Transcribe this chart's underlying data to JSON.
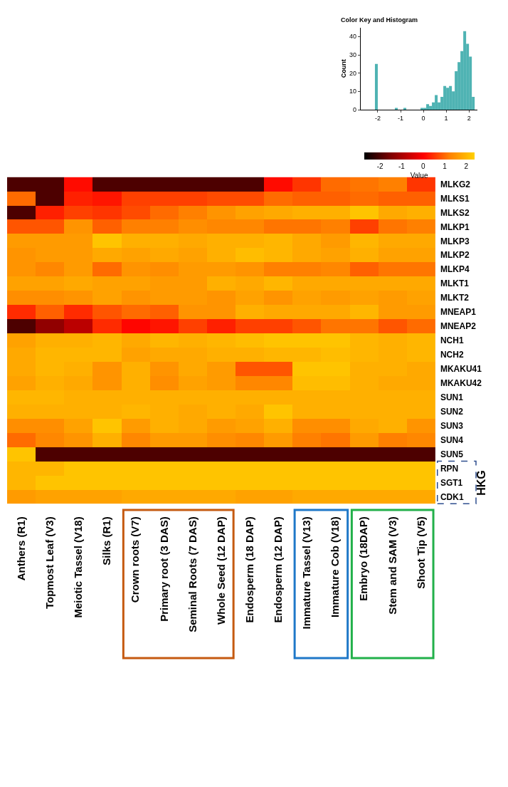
{
  "chart_data": [
    {
      "type": "heatmap",
      "categories": [
        "Anthers (R1)",
        "Topmost Leaf (V3)",
        "Meiotic Tassel (V18)",
        "Silks (R1)",
        "Crown roots (V7)",
        "Primary root (3 DAS)",
        "Seminal Roots (7 DAS)",
        "Whole Seed (12 DAP)",
        "Endosperm (18 DAP)",
        "Endosperm (12 DAP)",
        "Immature Tassel (V13)",
        "Immature Cob (V18)",
        "Embryo (18DAP)",
        "Stem and SAM (V3)",
        "Shoot Tip (V5)"
      ],
      "y_categories": [
        "MLKG2",
        "MLKS1",
        "MLKS2",
        "MLKP1",
        "MLKP3",
        "MLKP2",
        "MLKP4",
        "MLKT1",
        "MLKT2",
        "MNEAP1",
        "MNEAP2",
        "NCH1",
        "NCH2",
        "MKAKU41",
        "MKAKU42",
        "SUN1",
        "SUN2",
        "SUN3",
        "SUN4",
        "SUN5",
        "RPN",
        "SGT1",
        "CDK1"
      ],
      "cells": [
        [
          -2,
          -2,
          0.1,
          -2,
          -2,
          -2,
          -2,
          -2,
          -2,
          0.1,
          0.5,
          1.0,
          1.1,
          1.2,
          0.5
        ],
        [
          1.0,
          -2,
          0.3,
          0.2,
          0.6,
          0.6,
          0.6,
          0.7,
          0.7,
          1.0,
          0.9,
          0.9,
          1.0,
          0.9,
          0.9
        ],
        [
          -2,
          0.3,
          0.6,
          0.5,
          0.7,
          1.0,
          1.2,
          1.5,
          1.7,
          1.8,
          1.9,
          1.9,
          2.2,
          1.8,
          1.9
        ],
        [
          0.8,
          0.8,
          1.5,
          0.9,
          1.2,
          1.2,
          1.4,
          1.3,
          1.3,
          1.1,
          1.1,
          1.2,
          0.6,
          1.1,
          1.2
        ],
        [
          1.6,
          1.6,
          1.6,
          2.2,
          1.9,
          1.9,
          1.8,
          1.9,
          1.9,
          2.0,
          1.8,
          1.6,
          2.0,
          1.8,
          1.8
        ],
        [
          1.5,
          1.6,
          1.6,
          1.8,
          1.7,
          1.8,
          1.7,
          1.9,
          2.1,
          2.0,
          1.8,
          1.7,
          1.9,
          1.7,
          1.7
        ],
        [
          1.5,
          1.3,
          1.6,
          1.0,
          1.5,
          1.4,
          1.6,
          1.6,
          1.5,
          1.2,
          1.2,
          1.3,
          0.9,
          1.1,
          1.1
        ],
        [
          1.7,
          1.7,
          1.8,
          1.7,
          1.7,
          1.6,
          1.6,
          1.9,
          1.8,
          2.0,
          1.8,
          1.8,
          1.8,
          1.8,
          1.8
        ],
        [
          1.4,
          1.4,
          1.5,
          1.7,
          1.5,
          1.6,
          1.6,
          1.5,
          1.7,
          1.5,
          1.7,
          1.6,
          1.7,
          1.6,
          1.7
        ],
        [
          0.4,
          0.9,
          0.4,
          0.8,
          1.0,
          0.9,
          1.5,
          1.5,
          1.9,
          1.8,
          1.8,
          1.8,
          2.0,
          1.6,
          1.6
        ],
        [
          -2,
          -1.3,
          -0.8,
          0.4,
          0.05,
          0.2,
          0.6,
          0.3,
          0.6,
          0.6,
          0.8,
          1.1,
          1.1,
          0.8,
          1.0
        ],
        [
          1.7,
          1.9,
          1.9,
          2.0,
          1.8,
          2.0,
          1.9,
          2.0,
          2.1,
          2.2,
          2.2,
          2.2,
          2.0,
          1.9,
          2.0
        ],
        [
          1.8,
          2.0,
          2.0,
          2.0,
          1.7,
          1.8,
          1.8,
          1.9,
          1.9,
          2.0,
          2.0,
          2.1,
          2.0,
          1.9,
          2.0
        ],
        [
          1.8,
          2.0,
          1.9,
          1.5,
          1.9,
          1.5,
          1.8,
          1.6,
          0.8,
          0.8,
          2.2,
          2.2,
          1.9,
          1.9,
          1.8
        ],
        [
          1.7,
          1.9,
          1.8,
          1.5,
          1.9,
          1.4,
          1.7,
          1.6,
          1.3,
          1.3,
          2.1,
          2.1,
          1.9,
          1.8,
          1.8
        ],
        [
          2.0,
          2.0,
          1.9,
          1.9,
          1.9,
          1.9,
          1.9,
          1.9,
          1.9,
          1.9,
          1.9,
          1.9,
          1.9,
          1.9,
          1.9
        ],
        [
          1.9,
          1.9,
          1.9,
          1.9,
          2.0,
          1.9,
          1.8,
          1.9,
          1.8,
          2.2,
          1.9,
          1.9,
          1.9,
          1.9,
          1.9
        ],
        [
          1.4,
          1.4,
          1.7,
          2.2,
          1.6,
          1.9,
          1.8,
          1.6,
          1.7,
          1.9,
          1.4,
          1.4,
          1.8,
          1.9,
          1.5
        ],
        [
          1.0,
          1.3,
          1.5,
          1.9,
          1.3,
          1.6,
          1.6,
          1.4,
          1.3,
          1.6,
          1.2,
          1.1,
          1.6,
          1.2,
          1.3
        ],
        [
          2.2,
          -2,
          -2,
          -2,
          -2,
          -2,
          -2,
          -2,
          -2,
          -2,
          -2,
          -2,
          -2,
          -2,
          -2
        ],
        [
          2.0,
          2.0,
          2.2,
          2.2,
          2.2,
          2.2,
          2.2,
          2.2,
          2.2,
          2.2,
          2.2,
          2.2,
          2.2,
          2.2,
          2.2
        ],
        [
          2.0,
          2.2,
          2.2,
          2.2,
          2.2,
          2.2,
          2.2,
          2.2,
          2.2,
          2.2,
          2.2,
          2.2,
          2.2,
          2.2,
          2.2
        ],
        [
          1.6,
          1.7,
          1.7,
          1.7,
          1.8,
          1.8,
          1.8,
          1.8,
          1.7,
          1.7,
          1.8,
          1.8,
          1.8,
          1.8,
          1.8
        ]
      ],
      "clim": [
        -2.75,
        2.375
      ],
      "cticks": [
        -2,
        -1,
        0,
        1,
        2
      ],
      "clabel": "Value",
      "annotations": [
        "HKG"
      ]
    },
    {
      "type": "histogram",
      "title": "Color Key and Histogram",
      "ylabel": "Count",
      "color": "#4fb3b3",
      "bins": [
        -2.125,
        -2.0,
        -1.875,
        -1.75,
        -1.625,
        -1.5,
        -1.375,
        -1.25,
        -1.125,
        -1.0,
        -0.875,
        -0.75,
        -0.625,
        -0.5,
        -0.375,
        -0.25,
        -0.125,
        0,
        0.125,
        0.25,
        0.375,
        0.5,
        0.625,
        0.75,
        0.875,
        1.0,
        1.125,
        1.25,
        1.375,
        1.5,
        1.625,
        1.75,
        1.875,
        2.0,
        2.125,
        2.25,
        2.375
      ],
      "values": [
        25,
        0,
        0,
        0,
        0,
        0,
        0,
        1,
        0,
        0,
        1,
        0,
        0,
        0,
        0,
        0,
        1,
        1,
        3,
        2,
        4,
        8,
        4,
        7,
        13,
        12,
        13,
        10,
        21,
        26,
        32,
        43,
        36,
        29,
        7,
        0
      ],
      "xlim": [
        -2.75,
        2.375
      ],
      "xticks": [
        -2,
        -1,
        0,
        1,
        2
      ],
      "ylim": [
        0,
        45
      ],
      "yticks": [
        0,
        10,
        20,
        30,
        40
      ]
    }
  ]
}
